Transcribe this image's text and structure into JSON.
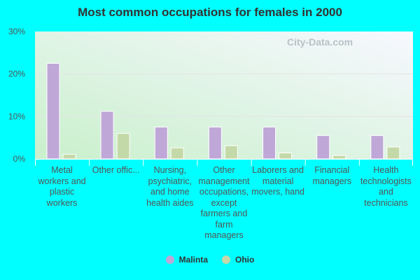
{
  "chart_data": {
    "type": "bar",
    "title": "Most common occupations for females in 2000",
    "categories": [
      "Metal workers and plastic workers",
      "Other offic...",
      "Nursing, psychiatric, and home health aides",
      "Other management occupations, except farmers and farm managers",
      "Laborers and material movers, hand",
      "Financial managers",
      "Health technologists and technicians"
    ],
    "series": [
      {
        "name": "Malinta",
        "color": "#bfa8d8",
        "values": [
          22.5,
          11.2,
          7.5,
          7.5,
          7.5,
          5.5,
          5.5
        ]
      },
      {
        "name": "Ohio",
        "color": "#c4d9a8",
        "values": [
          1.1,
          6.0,
          2.6,
          3.1,
          1.4,
          0.8,
          2.8
        ]
      }
    ],
    "ylim": [
      0,
      30
    ],
    "yticks": [
      "0%",
      "10%",
      "20%",
      "30%"
    ],
    "grid": true,
    "legend": "bottom",
    "watermark": "City-Data.com"
  }
}
